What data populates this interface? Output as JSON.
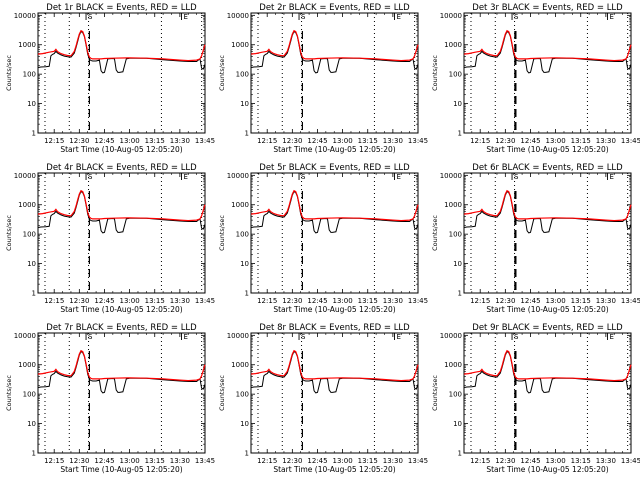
{
  "chart_data": {
    "type": "line",
    "layout": "3x3 grid",
    "panels": [
      {
        "title": "Det 1r BLACK = Events, RED = LLD"
      },
      {
        "title": "Det 2r BLACK = Events, RED = LLD"
      },
      {
        "title": "Det 3r BLACK = Events, RED = LLD"
      },
      {
        "title": "Det 4r BLACK = Events, RED = LLD"
      },
      {
        "title": "Det 5r BLACK = Events, RED = LLD"
      },
      {
        "title": "Det 6r BLACK = Events, RED = LLD"
      },
      {
        "title": "Det 7r BLACK = Events, RED = LLD"
      },
      {
        "title": "Det 8r BLACK = Events, RED = LLD"
      },
      {
        "title": "Det 9r BLACK = Events, RED = LLD"
      }
    ],
    "xlabel": "Start Time (10-Aug-05 12:05:20)",
    "ylabel": "Counts/sec",
    "x_tick_labels": [
      "12:15",
      "12:30",
      "12:45",
      "13:00",
      "13:15",
      "13:30",
      "13:45"
    ],
    "x_tick_minutes": [
      15,
      30,
      45,
      60,
      75,
      90,
      105
    ],
    "xlim_minutes": [
      5.33,
      105
    ],
    "y_scale": "log",
    "ylim": [
      1,
      12000
    ],
    "y_tick_labels": [
      "1",
      "10",
      "100",
      "1000",
      "10000"
    ],
    "y_tick_values": [
      1,
      10,
      100,
      1000,
      10000
    ],
    "top_markers": [
      "S",
      "E"
    ],
    "top_marker_minutes": [
      34,
      91
    ],
    "dotted_vertical_lines_minutes": [
      9.5,
      24,
      35.5,
      79,
      103
    ],
    "dashed_vertical_line_minutes": 36,
    "line_colors": {
      "events": "#000000",
      "lld": "#ff0000"
    },
    "series": [
      {
        "name": "LLD",
        "color": "#ff0000",
        "x": [
          5.33,
          8,
          12,
          15,
          16,
          17,
          19,
          21,
          23,
          25,
          27,
          28,
          29,
          30,
          31,
          32,
          33,
          34,
          35,
          36,
          37,
          38,
          40,
          43,
          45,
          50,
          60,
          70,
          80,
          90,
          95,
          100,
          102,
          103,
          104,
          105
        ],
        "y": [
          480,
          500,
          560,
          600,
          700,
          580,
          500,
          460,
          430,
          420,
          600,
          900,
          1500,
          2300,
          3000,
          2800,
          2000,
          1100,
          550,
          380,
          340,
          330,
          330,
          330,
          340,
          350,
          360,
          350,
          330,
          300,
          290,
          300,
          330,
          420,
          650,
          1000
        ]
      },
      {
        "name": "Events",
        "color": "#000000",
        "x": [
          5.33,
          6,
          7,
          10,
          12,
          13,
          14,
          15,
          16,
          17,
          19,
          21,
          23,
          25,
          27,
          28,
          29,
          30,
          31,
          32,
          33,
          34,
          35,
          36,
          37,
          38,
          39,
          40,
          42,
          43,
          44,
          45,
          47,
          50,
          51,
          52,
          53,
          54,
          56,
          58,
          60,
          70,
          80,
          90,
          95,
          100,
          101,
          102,
          103,
          104,
          105
        ],
        "y": [
          170,
          170,
          175,
          180,
          185,
          420,
          470,
          500,
          600,
          520,
          450,
          410,
          390,
          380,
          520,
          800,
          1300,
          2100,
          2800,
          2600,
          1900,
          1000,
          480,
          320,
          290,
          280,
          280,
          280,
          300,
          130,
          110,
          115,
          330,
          340,
          330,
          140,
          115,
          115,
          120,
          330,
          350,
          345,
          310,
          280,
          270,
          270,
          300,
          330,
          160,
          150,
          220
        ]
      }
    ]
  }
}
